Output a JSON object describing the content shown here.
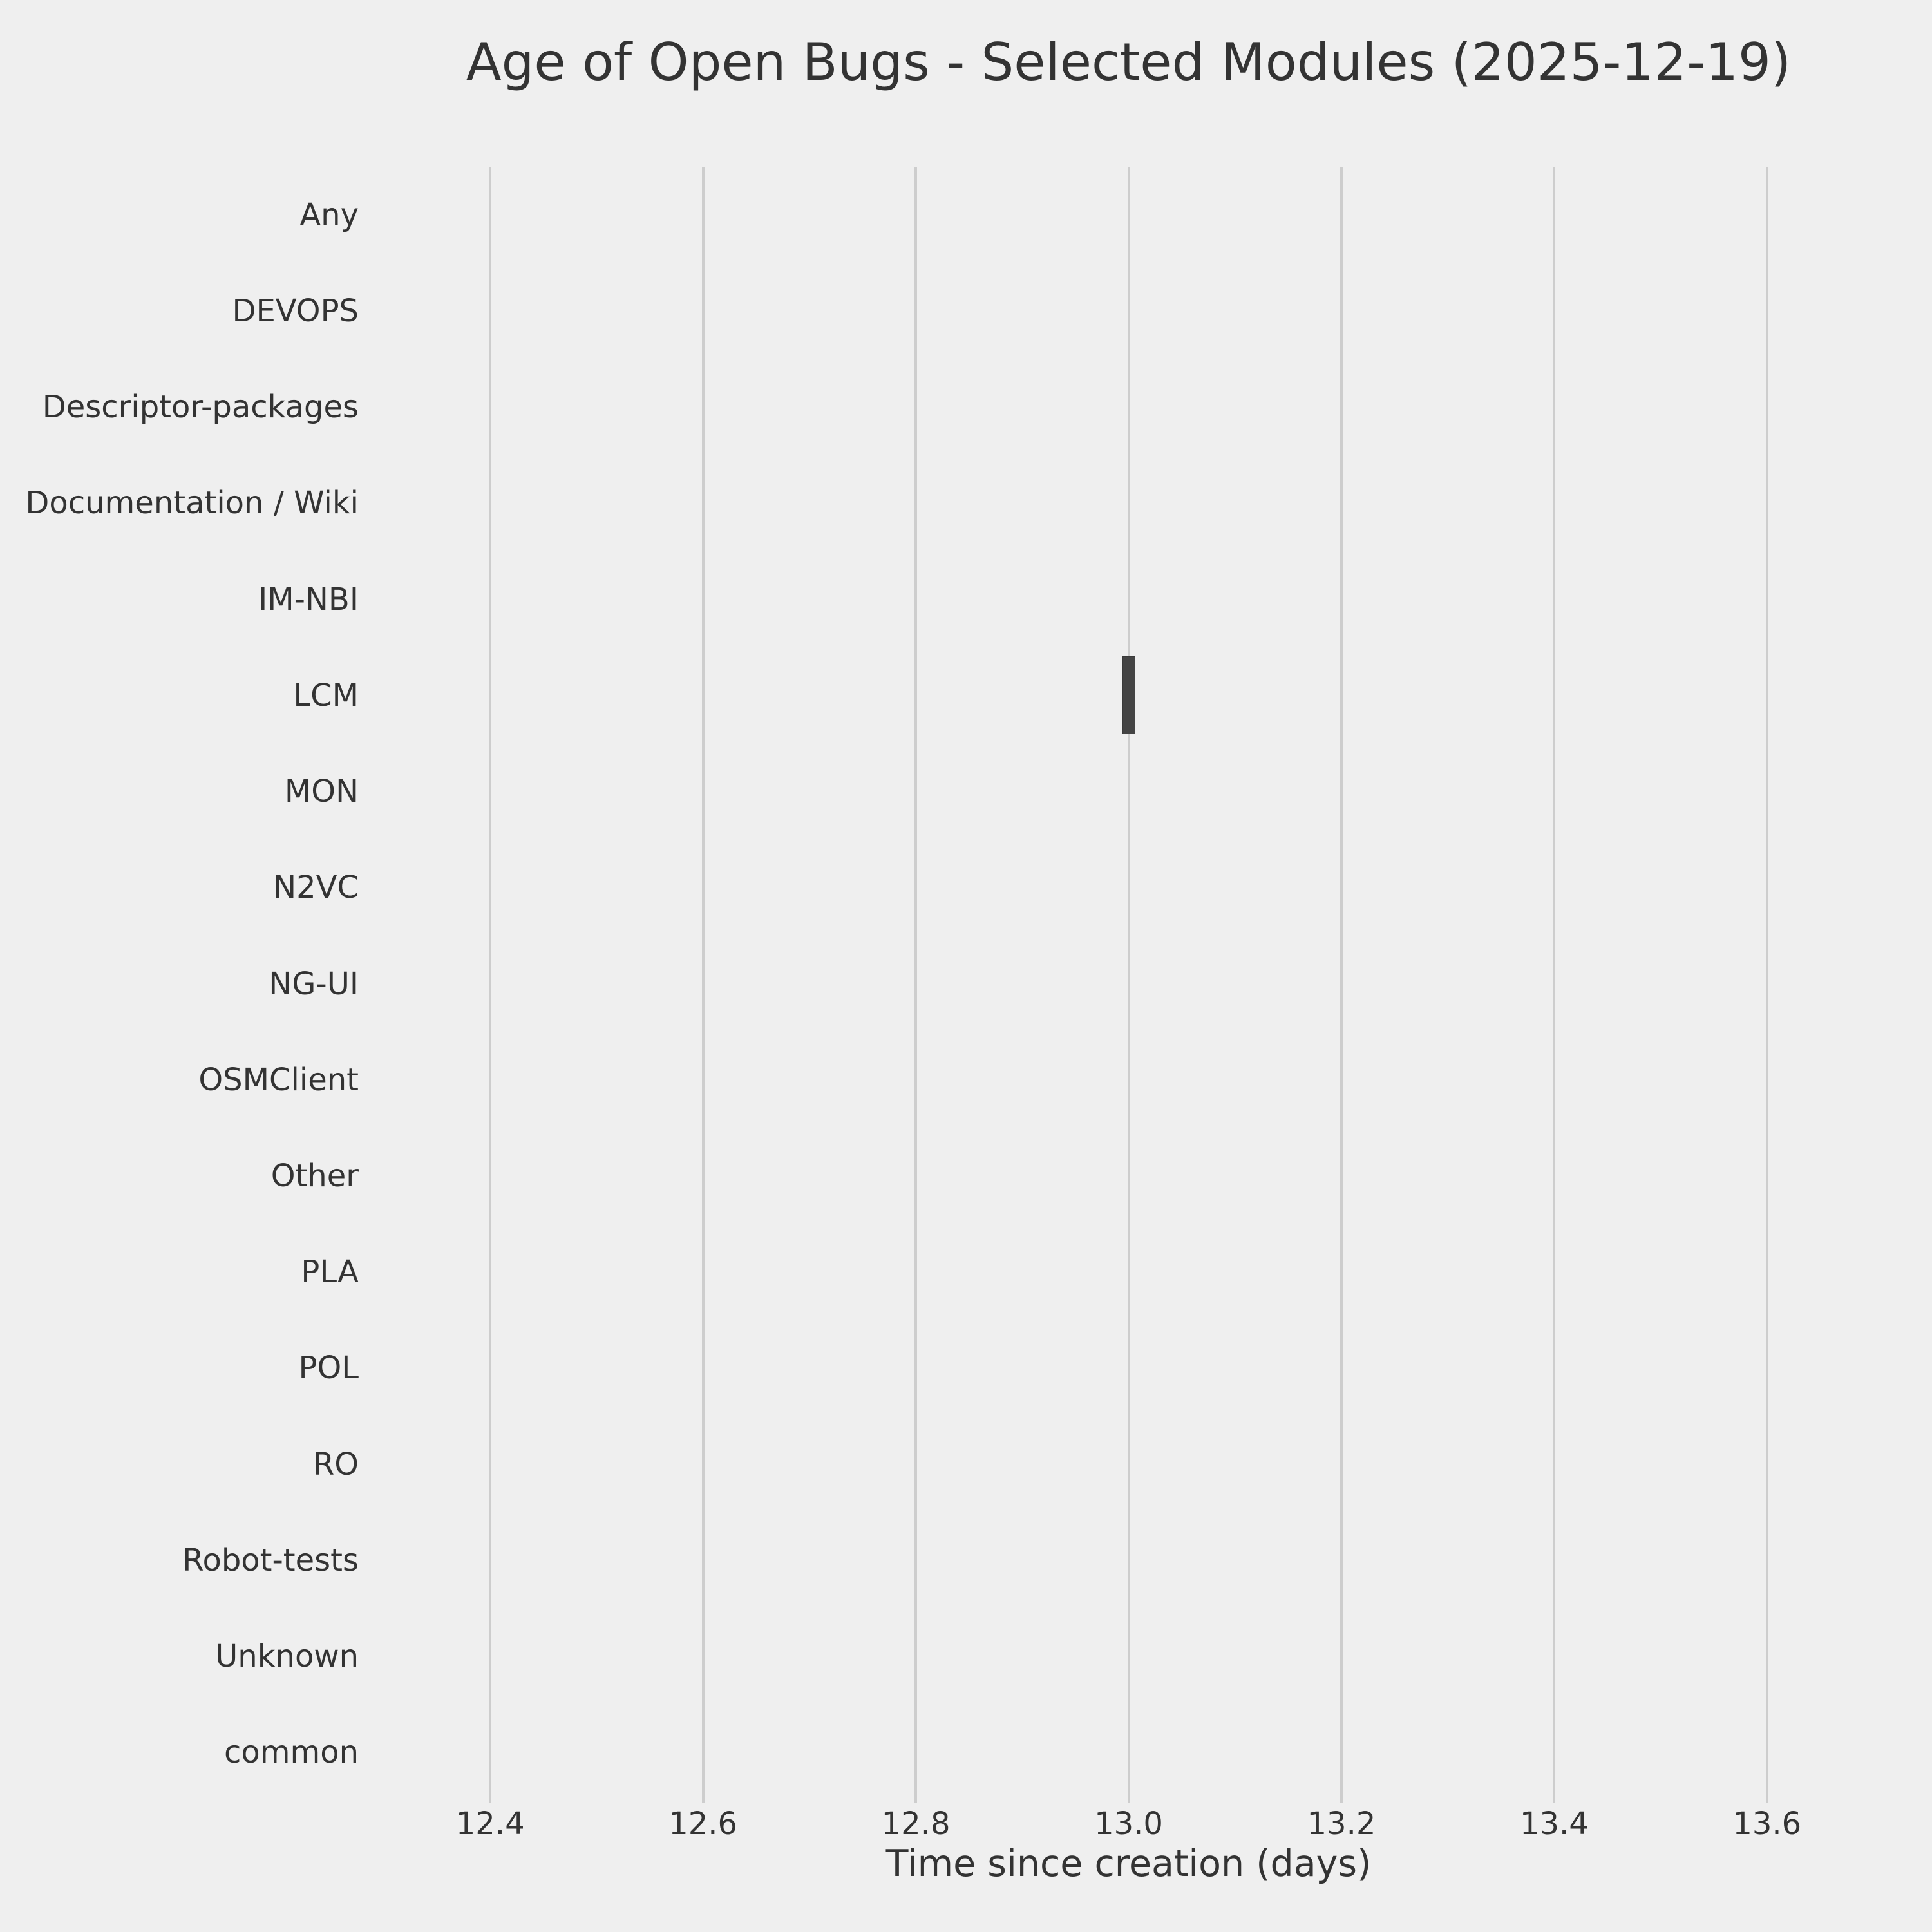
{
  "title": "Age of Open Bugs - Selected Modules (2025-12-19)",
  "chart_data": {
    "type": "boxplot",
    "orientation": "horizontal",
    "title": "Age of Open Bugs - Selected Modules (2025-12-19)",
    "xlabel": "Time since creation (days)",
    "ylabel": "",
    "categories": [
      "Any",
      "DEVOPS",
      "Descriptor-packages",
      "Documentation / Wiki",
      "IM-NBI",
      "LCM",
      "MON",
      "N2VC",
      "NG-UI",
      "OSMClient",
      "Other",
      "PLA",
      "POL",
      "RO",
      "Robot-tests",
      "Unknown",
      "common"
    ],
    "xticks": [
      "12.4",
      "12.6",
      "12.8",
      "13.0",
      "13.2",
      "13.4",
      "13.6"
    ],
    "xlim": [
      12.3,
      13.7
    ],
    "grid": "vertical-only",
    "legend": "none",
    "boxes": [
      {
        "category": "LCM",
        "min": 13.0,
        "q1": 13.0,
        "median": 13.0,
        "q3": 13.0,
        "max": 13.0
      }
    ],
    "colors": {
      "background": "#efefef",
      "gridline": "#cdcdcd",
      "box_fill": "#444444",
      "text": "#333333"
    }
  }
}
